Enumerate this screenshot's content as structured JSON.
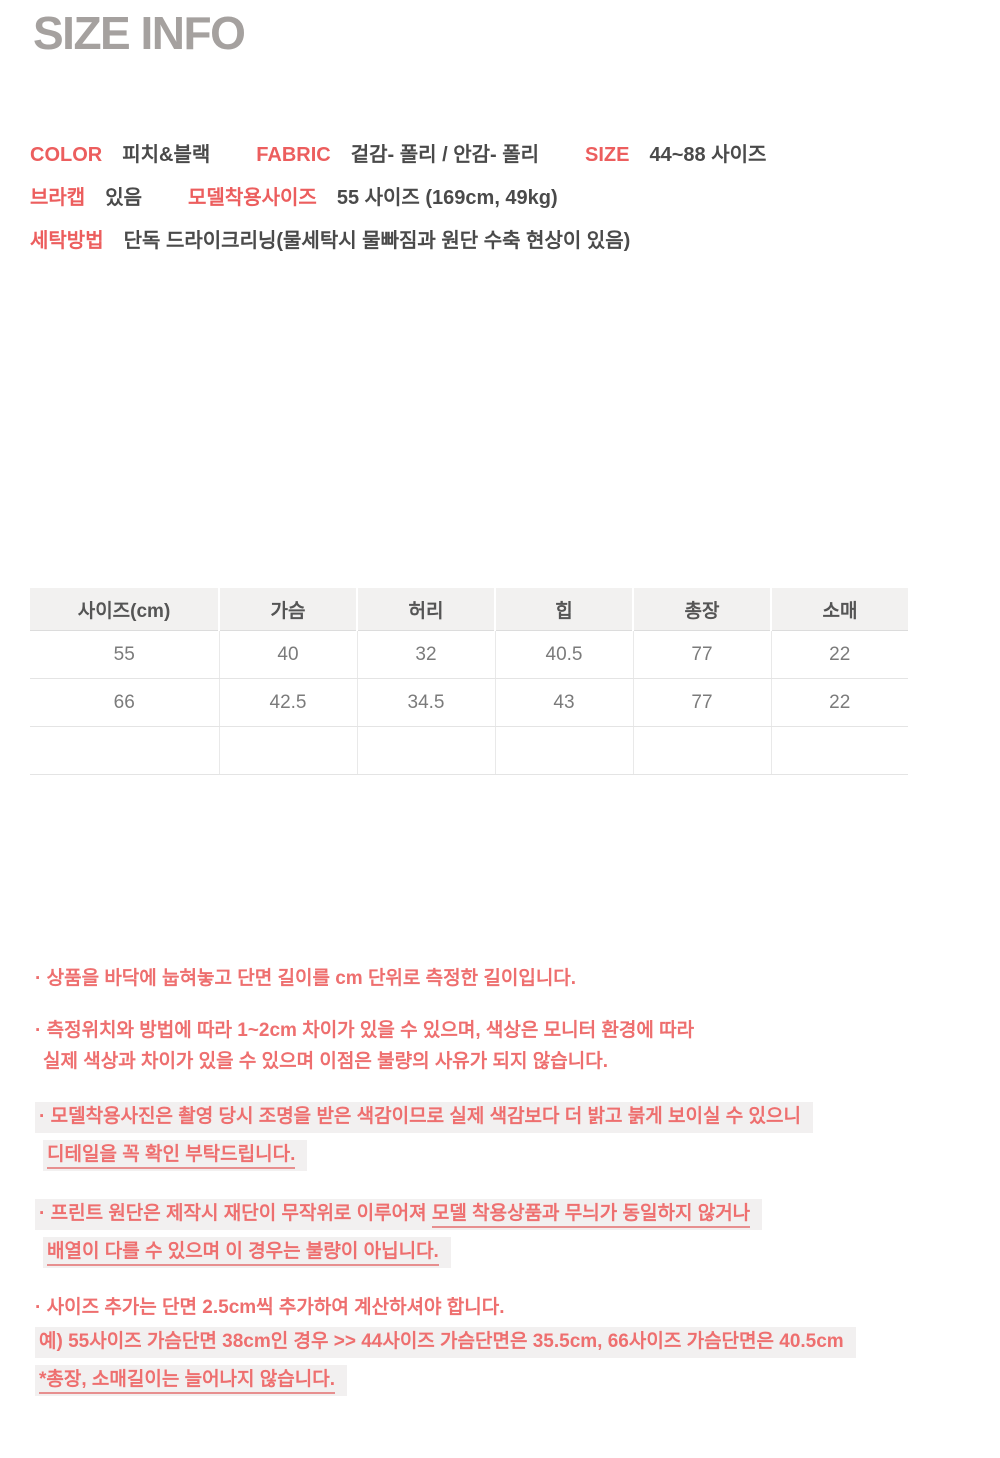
{
  "title": "SIZE INFO",
  "details": {
    "lines": [
      [
        {
          "label": "COLOR",
          "value": "피치&블랙"
        },
        {
          "label": "FABRIC",
          "value": "겉감- 폴리 / 안감- 폴리"
        },
        {
          "label": "SIZE",
          "value": "44~88 사이즈"
        }
      ],
      [
        {
          "label": "브라캡",
          "value": "있음"
        },
        {
          "label": "모델착용사이즈",
          "value": "55 사이즈 (169cm, 49kg)"
        }
      ],
      [
        {
          "label": "세탁방법",
          "value": "단독 드라이크리닝(물세탁시 물빠짐과 원단 수축 현상이 있음)"
        }
      ]
    ]
  },
  "table": {
    "columns": [
      "사이즈(cm)",
      "가슴",
      "허리",
      "힙",
      "총장",
      "소매"
    ],
    "rows": [
      [
        "55",
        "40",
        "32",
        "40.5",
        "77",
        "22"
      ],
      [
        "66",
        "42.5",
        "34.5",
        "43",
        "77",
        "22"
      ],
      [
        "",
        "",
        "",
        "",
        "",
        ""
      ]
    ]
  },
  "notes": [
    {
      "lines": [
        {
          "highlight": false,
          "indent": false,
          "segments": [
            {
              "text": "· 상품을 바닥에 눕혀놓고 단면 길이를 cm 단위로 측정한 길이입니다.",
              "underline": false
            }
          ]
        }
      ]
    },
    {
      "lines": [
        {
          "highlight": false,
          "indent": false,
          "segments": [
            {
              "text": "· 측정위치와 방법에 따라 1~2cm 차이가 있을 수 있으며, 색상은 모니터 환경에 따라",
              "underline": false
            }
          ]
        },
        {
          "highlight": false,
          "indent": true,
          "segments": [
            {
              "text": "실제 색상과 차이가 있을 수 있으며 이점은 불량의 사유가 되지 않습니다.",
              "underline": false
            }
          ]
        }
      ]
    },
    {
      "lines": [
        {
          "highlight": true,
          "indent": false,
          "segments": [
            {
              "text": "· 모델착용사진은 촬영 당시 조명을 받은 색감이므로 실제 색감보다 더 밝고 붉게 보이실 수 있으니",
              "underline": false
            }
          ]
        },
        {
          "highlight": true,
          "indent": true,
          "segments": [
            {
              "text": "디테일을 꼭 확인 부탁드립니다.",
              "underline": true
            }
          ]
        }
      ]
    },
    {
      "lines": [
        {
          "highlight": true,
          "indent": false,
          "segments": [
            {
              "text": "· 프린트 원단은 제작시 재단이 무작위로 이루어져 ",
              "underline": false
            },
            {
              "text": "모델 착용상품과 무늬가 동일하지 않거나",
              "underline": true
            }
          ]
        },
        {
          "highlight": true,
          "indent": true,
          "segments": [
            {
              "text": "배열이 다를 수 있으며 이 경우는 불량이 아닙니다.",
              "underline": true
            }
          ]
        }
      ]
    },
    {
      "lines": [
        {
          "highlight": false,
          "indent": false,
          "segments": [
            {
              "text": "· 사이즈 추가는 단면 2.5cm씩 추가하여 계산하셔야 합니다.",
              "underline": false
            }
          ]
        },
        {
          "highlight": true,
          "indent": false,
          "segments": [
            {
              "text": "예) 55사이즈 가슴단면 38cm인 경우  >> 44사이즈 가슴단면은 35.5cm, 66사이즈 가슴단면은 40.5cm",
              "underline": false
            }
          ]
        },
        {
          "highlight": true,
          "indent": false,
          "segments": [
            {
              "text": "*총장, 소매길이는 늘어나지 않습니다.",
              "underline": true
            }
          ]
        }
      ]
    }
  ],
  "colors": {
    "accent_coral": "#ec5e5e",
    "note_coral": "#ee6f6f",
    "title_gray": "#a5a19f",
    "text_dark": "#4a4a4a",
    "table_header_bg": "#f2f1f0",
    "highlight_bg": "#f2f0f0"
  }
}
